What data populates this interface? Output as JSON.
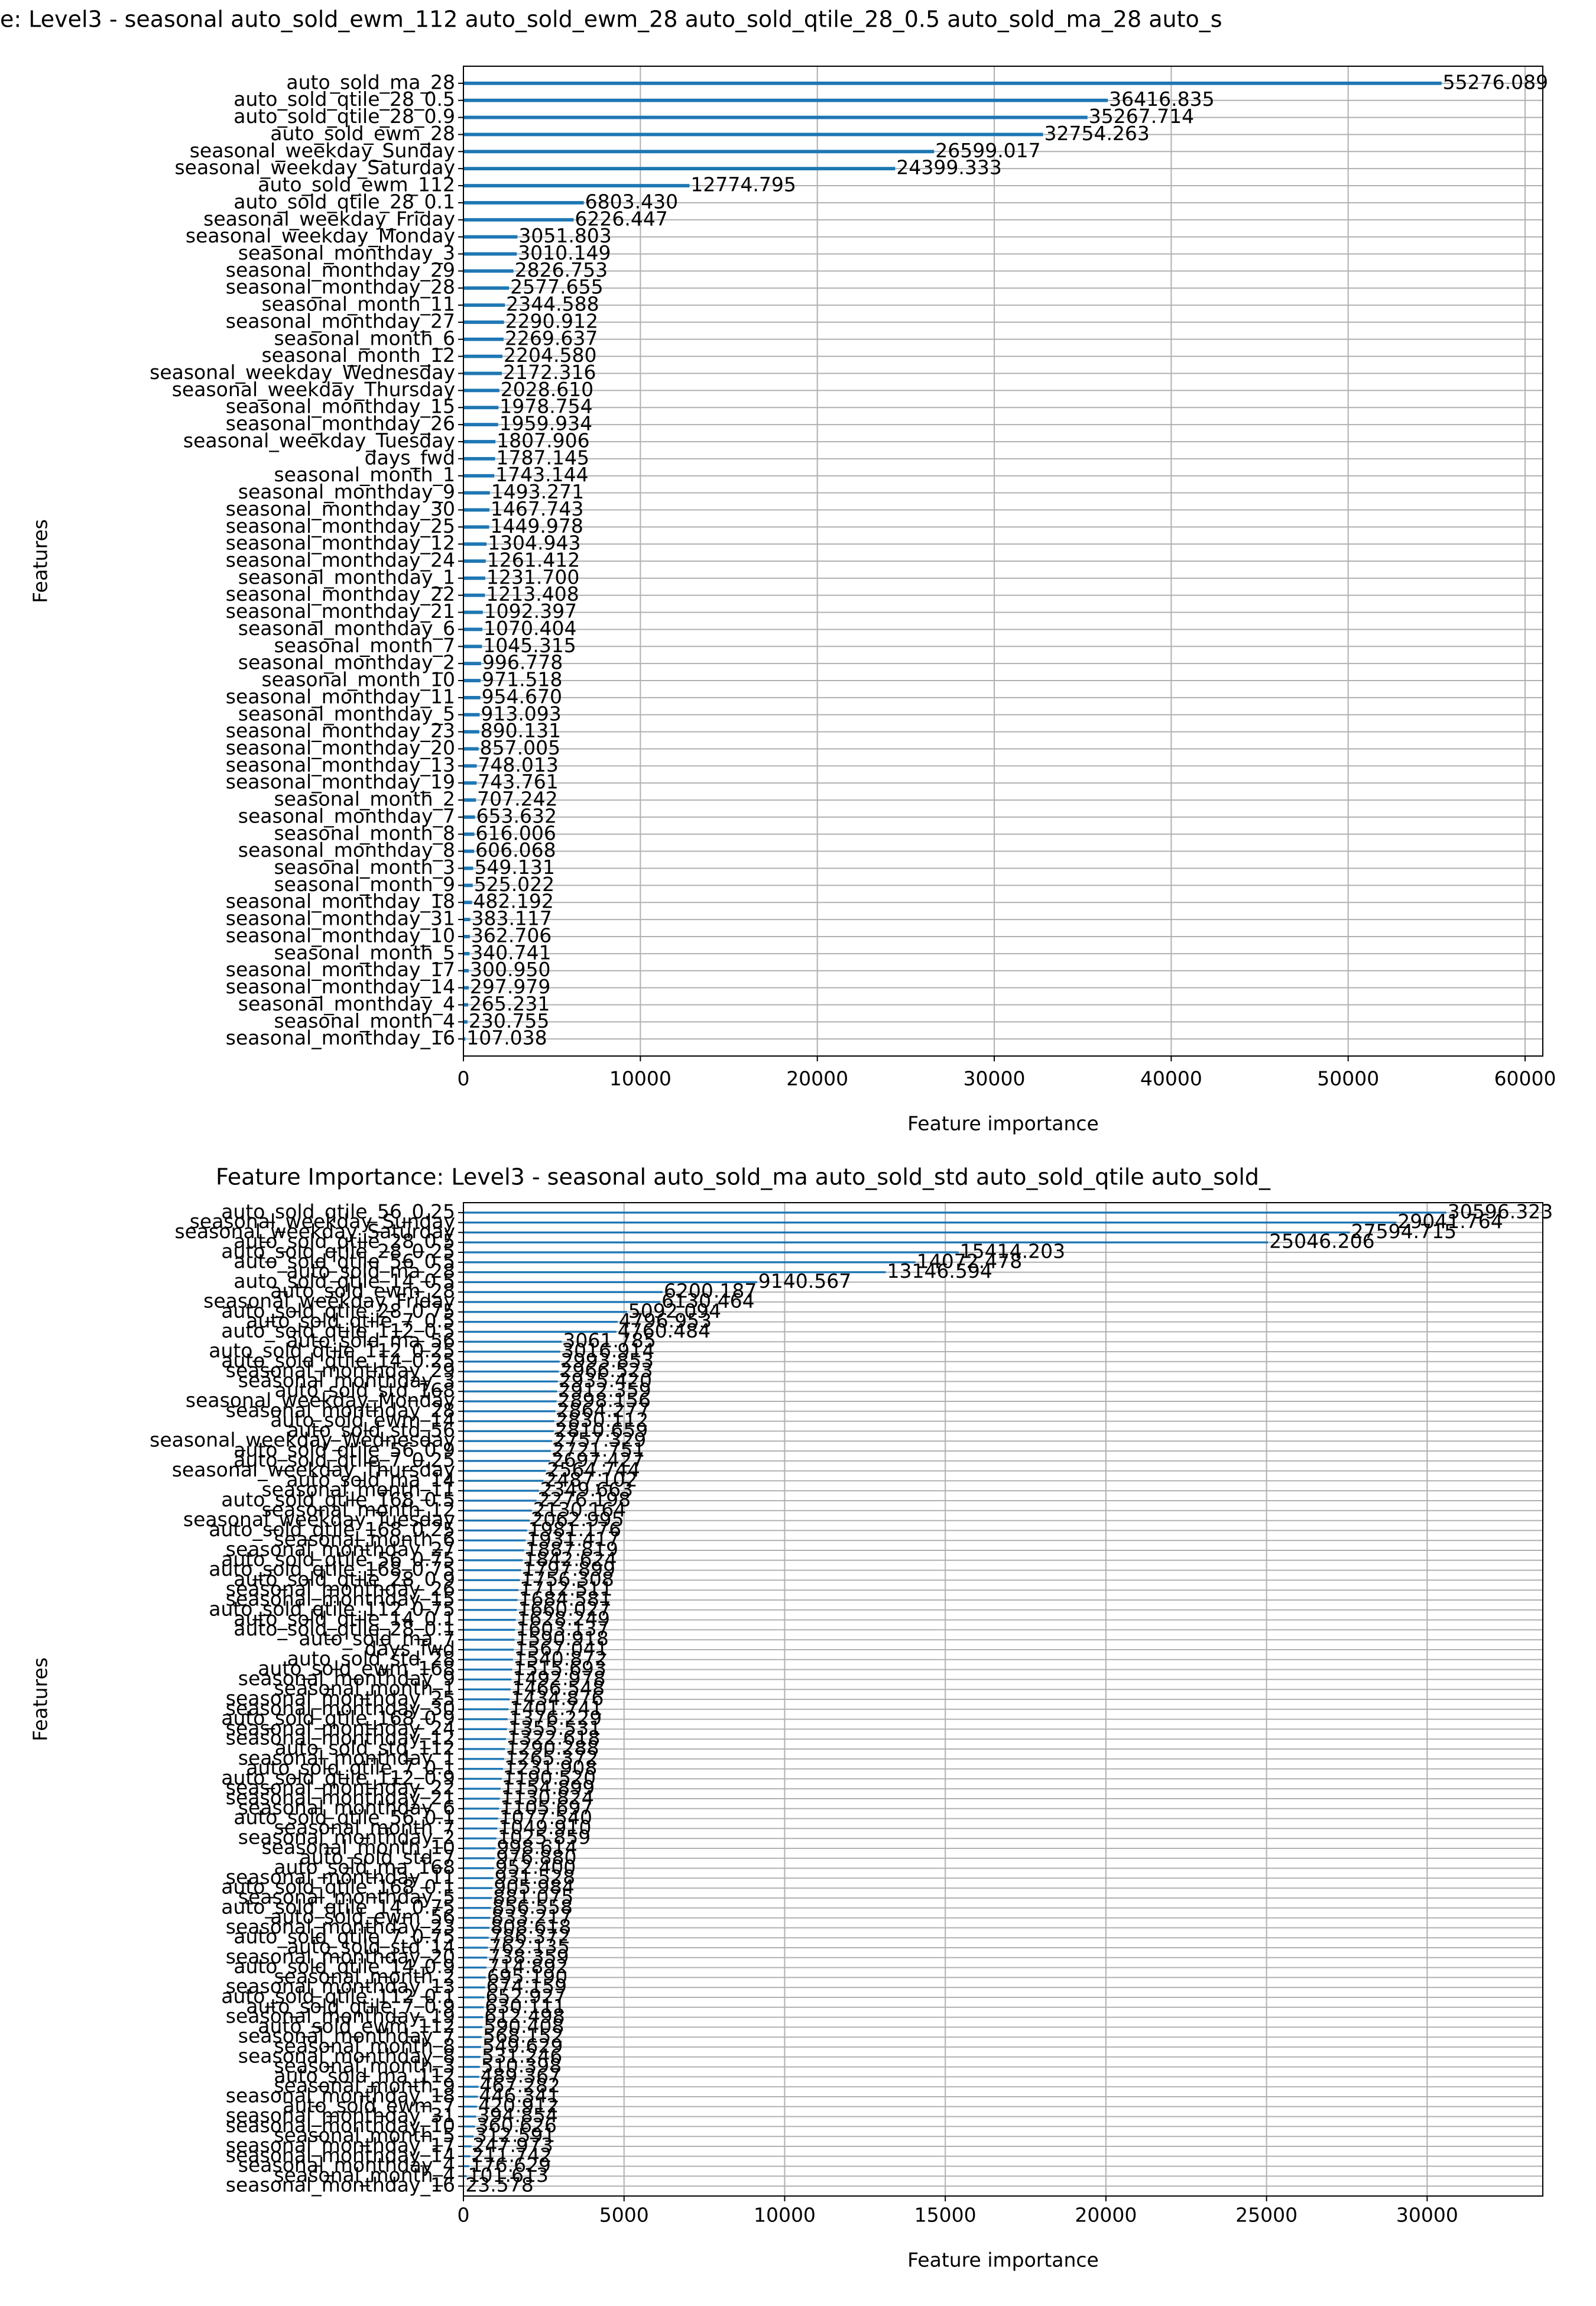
{
  "chart_data": [
    {
      "type": "barh",
      "title": "e: Level3 - seasonal auto_sold_ewm_112 auto_sold_ewm_28 auto_sold_qtile_28_0.5 auto_sold_ma_28 auto_s",
      "xlabel": "Feature importance",
      "ylabel": "Features",
      "categories": [
        "auto_sold_ma_28",
        "auto_sold_qtile_28_0.5",
        "auto_sold_qtile_28_0.9",
        "auto_sold_ewm_28",
        "seasonal_weekday_Sunday",
        "seasonal_weekday_Saturday",
        "auto_sold_ewm_112",
        "auto_sold_qtile_28_0.1",
        "seasonal_weekday_Friday",
        "seasonal_weekday_Monday",
        "seasonal_monthday_3",
        "seasonal_monthday_29",
        "seasonal_monthday_28",
        "seasonal_month_11",
        "seasonal_monthday_27",
        "seasonal_month_6",
        "seasonal_month_12",
        "seasonal_weekday_Wednesday",
        "seasonal_weekday_Thursday",
        "seasonal_monthday_15",
        "seasonal_monthday_26",
        "seasonal_weekday_Tuesday",
        "days_fwd",
        "seasonal_month_1",
        "seasonal_monthday_9",
        "seasonal_monthday_30",
        "seasonal_monthday_25",
        "seasonal_monthday_12",
        "seasonal_monthday_24",
        "seasonal_monthday_1",
        "seasonal_monthday_22",
        "seasonal_monthday_21",
        "seasonal_monthday_6",
        "seasonal_month_7",
        "seasonal_monthday_2",
        "seasonal_month_10",
        "seasonal_monthday_11",
        "seasonal_monthday_5",
        "seasonal_monthday_23",
        "seasonal_monthday_20",
        "seasonal_monthday_13",
        "seasonal_monthday_19",
        "seasonal_month_2",
        "seasonal_monthday_7",
        "seasonal_month_8",
        "seasonal_monthday_8",
        "seasonal_month_3",
        "seasonal_month_9",
        "seasonal_monthday_18",
        "seasonal_monthday_31",
        "seasonal_monthday_10",
        "seasonal_month_5",
        "seasonal_monthday_17",
        "seasonal_monthday_14",
        "seasonal_monthday_4",
        "seasonal_month_4",
        "seasonal_monthday_16"
      ],
      "values": [
        55276.089,
        36416.835,
        35267.714,
        32754.263,
        26599.017,
        24399.333,
        12774.795,
        6803.43,
        6226.447,
        3051.803,
        3010.149,
        2826.753,
        2577.655,
        2344.588,
        2290.912,
        2269.637,
        2204.58,
        2172.316,
        2028.61,
        1978.754,
        1959.934,
        1807.906,
        1787.145,
        1743.144,
        1493.271,
        1467.743,
        1449.978,
        1304.943,
        1261.412,
        1231.7,
        1213.408,
        1092.397,
        1070.404,
        1045.315,
        996.778,
        971.518,
        954.67,
        913.093,
        890.131,
        857.005,
        748.013,
        743.761,
        707.242,
        653.632,
        616.006,
        606.068,
        549.131,
        525.022,
        482.192,
        383.117,
        362.706,
        340.741,
        300.95,
        297.979,
        265.231,
        230.755,
        107.038
      ],
      "value_labels": [
        "55276.089",
        "36416.835",
        "35267.714",
        "32754.263",
        "26599.017",
        "24399.333",
        "12774.795",
        "6803.430",
        "6226.447",
        "3051.803",
        "3010.149",
        "2826.753",
        "2577.655",
        "2344.588",
        "2290.912",
        "2269.637",
        "2204.580",
        "2172.316",
        "2028.610",
        "1978.754",
        "1959.934",
        "1807.906",
        "1787.145",
        "1743.144",
        "1493.271",
        "1467.743",
        "1449.978",
        "1304.943",
        "1261.412",
        "1231.700",
        "1213.408",
        "1092.397",
        "1070.404",
        "1045.315",
        "996.778",
        "971.518",
        "954.670",
        "913.093",
        "890.131",
        "857.005",
        "748.013",
        "743.761",
        "707.242",
        "653.632",
        "616.006",
        "606.068",
        "549.131",
        "525.022",
        "482.192",
        "383.117",
        "362.706",
        "340.741",
        "300.950",
        "297.979",
        "265.231",
        "230.755",
        "107.038"
      ],
      "color": "#1f77b4",
      "xlim": [
        0,
        61000
      ],
      "xticks": [
        0,
        10000,
        20000,
        30000,
        40000,
        50000,
        60000
      ],
      "grid": true
    },
    {
      "type": "barh",
      "title": "Feature Importance: Level3 - seasonal auto_sold_ma auto_sold_std auto_sold_qtile auto_sold_",
      "xlabel": "Feature importance",
      "ylabel": "Features",
      "categories": [
        "auto_sold_qtile_56_0.25",
        "seasonal_weekday_Sunday",
        "seasonal_weekday_Saturday",
        "auto_sold_qtile_28_0.5",
        "auto_sold_qtile_28_0.25",
        "auto_sold_qtile_56_0.5",
        "auto_sold_ma_28",
        "auto_sold_qtile_14_0.5",
        "auto_sold_ewm_28",
        "seasonal_weekday_Friday",
        "auto_sold_qtile_28_0.75",
        "auto_sold_qtile_7_0.5",
        "auto_sold_qtile_112_0.5",
        "auto_sold_ma_56",
        "auto_sold_qtile_112_0.25",
        "auto_sold_qtile_14_0.25",
        "seasonal_monthday_29",
        "seasonal_monthday_3",
        "auto_sold_std_168",
        "seasonal_weekday_Monday",
        "seasonal_monthday_28",
        "auto_sold_ewm_14",
        "auto_sold_std_56",
        "seasonal_weekday_Wednesday",
        "auto_sold_qtile_56_0.9",
        "auto_sold_qtile_7_0.25",
        "seasonal_weekday_Thursday",
        "auto_sold_ma_14",
        "seasonal_month_11",
        "auto_sold_qtile_168_0.5",
        "seasonal_month_12",
        "seasonal_weekday_Tuesday",
        "auto_sold_qtile_168_0.25",
        "seasonal_month_6",
        "seasonal_monthday_27",
        "auto_sold_qtile_56_0.75",
        "auto_sold_qtile_168_0.75",
        "auto_sold_qtile_28_0.9",
        "seasonal_monthday_26",
        "seasonal_monthday_15",
        "auto_sold_qtile_112_0.75",
        "auto_sold_qtile_14_0.1",
        "auto_sold_qtile_28_0.1",
        "auto_sold_ma_7",
        "days_fwd",
        "auto_sold_std_28",
        "auto_sold_ewm_168",
        "seasonal_monthday_9",
        "seasonal_month_1",
        "seasonal_monthday_25",
        "seasonal_monthday_30",
        "auto_sold_qtile_168_0.9",
        "seasonal_monthday_24",
        "seasonal_monthday_12",
        "auto_sold_std_112",
        "seasonal_monthday_1",
        "auto_sold_qtile_7_0.1",
        "auto_sold_qtile_112_0.9",
        "seasonal_monthday_22",
        "seasonal_monthday_21",
        "seasonal_monthday_6",
        "auto_sold_qtile_56_0.1",
        "seasonal_month_7",
        "seasonal_monthday_2",
        "seasonal_month_10",
        "auto_sold_std_7",
        "auto_sold_ma_168",
        "seasonal_monthday_11",
        "auto_sold_qtile_168_0.1",
        "seasonal_monthday_5",
        "auto_sold_qtile_14_0.75",
        "auto_sold_ewm_56",
        "seasonal_monthday_23",
        "auto_sold_qtile_7_0.75",
        "auto_sold_std_14",
        "seasonal_monthday_20",
        "auto_sold_qtile_14_0.9",
        "seasonal_month_2",
        "seasonal_monthday_13",
        "auto_sold_qtile_112_0.1",
        "auto_sold_qtile_7_0.9",
        "seasonal_monthday_19",
        "auto_sold_ewm_112",
        "seasonal_monthday_7",
        "seasonal_month_8",
        "seasonal_monthday_8",
        "seasonal_month_3",
        "auto_sold_ma_112",
        "seasonal_month_9",
        "seasonal_monthday_18",
        "auto_sold_ewm_7",
        "seasonal_monthday_31",
        "seasonal_monthday_10",
        "seasonal_month_5",
        "seasonal_monthday_17",
        "seasonal_monthday_14",
        "seasonal_monthday_4",
        "seasonal_month_4",
        "seasonal_monthday_16"
      ],
      "values": [
        30596.323,
        29041.764,
        27594.715,
        25046.206,
        15414.203,
        14072.478,
        13146.594,
        9140.567,
        6200.187,
        6130.464,
        5092.094,
        4796.953,
        4760.484,
        3061.785,
        3016.914,
        2993.853,
        2966.523,
        2935.42,
        2912.359,
        2898.156,
        2864.277,
        2830.112,
        2810.659,
        2757.329,
        2721.751,
        2697.427,
        2564.744,
        2487.102,
        2349.663,
        2276.198,
        2130.164,
        2062.995,
        1981.176,
        1931.417,
        1887.819,
        1842.624,
        1797.899,
        1756.308,
        1712.511,
        1684.581,
        1660.027,
        1628.249,
        1603.137,
        1590.918,
        1567.041,
        1540.872,
        1515.693,
        1492.978,
        1466.548,
        1434.876,
        1401.741,
        1376.229,
        1355.531,
        1322.618,
        1290.288,
        1265.372,
        1231.908,
        1190.52,
        1154.899,
        1130.824,
        1105.697,
        1077.54,
        1049.91,
        1025.859,
        998.614,
        976.88,
        952.4,
        931.528,
        905.984,
        881.075,
        856.558,
        833.217,
        808.618,
        786.372,
        762.135,
        738.359,
        714.892,
        695.19,
        674.159,
        652.927,
        630.111,
        612.498,
        590.408,
        568.152,
        549.629,
        531.246,
        510.398,
        489.367,
        467.282,
        446.341,
        420.912,
        394.854,
        360.626,
        312.591,
        247.973,
        211.742,
        176.629,
        101.613,
        23.578
      ],
      "value_labels": [
        "30596.323",
        "29041.764",
        "27594.715",
        "25046.206",
        "15414.203",
        "14072.478",
        "13146.594",
        "9140.567",
        "6200.187",
        "6130.464",
        "5092.094",
        "4796.953",
        "4760.484",
        "3061.785",
        "3016.914",
        "2993.853",
        "2966.523",
        "2935.420",
        "2912.359",
        "2898.156",
        "2864.277",
        "2830.112",
        "2810.659",
        "2757.329",
        "2721.751",
        "2697.427",
        "2564.744",
        "2487.102",
        "2349.663",
        "2276.198",
        "2130.164",
        "2062.995",
        "1981.176",
        "1931.417",
        "1887.819",
        "1842.624",
        "1797.899",
        "1756.308",
        "1712.511",
        "1684.581",
        "1660.027",
        "1628.249",
        "1603.137",
        "1590.918",
        "1567.041",
        "1540.872",
        "1515.693",
        "1492.978",
        "1466.548",
        "1434.876",
        "1401.741",
        "1376.229",
        "1355.531",
        "1322.618",
        "1290.288",
        "1265.372",
        "1231.908",
        "1190.520",
        "1154.899",
        "1130.824",
        "1105.697",
        "1077.540",
        "1049.910",
        "1025.859",
        "998.614",
        "976.880",
        "952.400",
        "931.528",
        "905.984",
        "881.075",
        "856.558",
        "833.217",
        "808.618",
        "786.372",
        "762.135",
        "738.359",
        "714.892",
        "695.190",
        "674.159",
        "652.927",
        "630.111",
        "612.498",
        "590.408",
        "568.152",
        "549.629",
        "531.246",
        "510.398",
        "489.367",
        "467.282",
        "446.341",
        "420.912",
        "394.854",
        "360.626",
        "312.591",
        "247.973",
        "211.742",
        "176.629",
        "101.613",
        "23.578"
      ],
      "color": "#1f77b4",
      "xlim": [
        0,
        33600
      ],
      "xticks": [
        0,
        5000,
        10000,
        15000,
        20000,
        25000,
        30000
      ],
      "grid": true
    }
  ]
}
